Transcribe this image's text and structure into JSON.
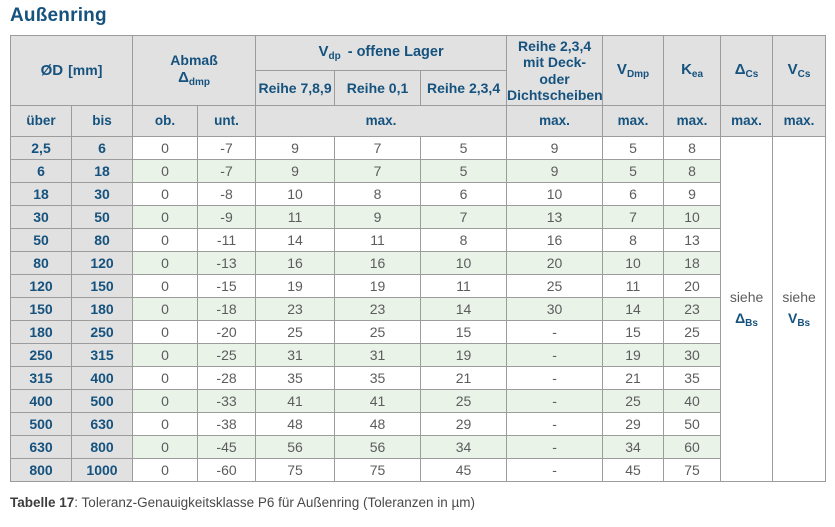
{
  "title": "Außenring",
  "table": {
    "header": {
      "od_label": "ØD",
      "od_unit": "[mm]",
      "abmass_label": "Abmaß",
      "abmass_sym": "Δ",
      "abmass_sub": "dmp",
      "vdp_sym": "V",
      "vdp_sub": "dp",
      "vdp_rest": "-  offene Lager",
      "reihe_789": "Reihe 7,8,9",
      "reihe_01": "Reihe 0,1",
      "reihe_234": "Reihe 2,3,4",
      "deck_line1": "Reihe 2,3,4",
      "deck_line2": "mit Deck- oder",
      "deck_line3": "Dichtscheiben",
      "vdmp_sym": "V",
      "vdmp_sub": "Dmp",
      "kea_sym": "K",
      "kea_sub": "ea",
      "dcs_sym": "Δ",
      "dcs_sub": "Cs",
      "vcs_sym": "V",
      "vcs_sub": "Cs",
      "ueber": "über",
      "bis": "bis",
      "ob": "ob.",
      "unt": "unt.",
      "max": "max."
    },
    "see_dbs": {
      "word": "siehe",
      "sym": "Δ",
      "sub": "Bs"
    },
    "see_vbs": {
      "word": "siehe",
      "sym": "V",
      "sub": "Bs"
    },
    "columns": [
      "über",
      "bis",
      "ob.",
      "unt.",
      "Reihe 7,8,9 max.",
      "Reihe 0,1 max.",
      "Reihe 2,3,4 max.",
      "Reihe 2,3,4 mit Deck- oder Dichtscheiben max.",
      "VDmp max.",
      "Kea max."
    ],
    "rows": [
      [
        "2,5",
        "6",
        "0",
        "-7",
        "9",
        "7",
        "5",
        "9",
        "5",
        "8"
      ],
      [
        "6",
        "18",
        "0",
        "-7",
        "9",
        "7",
        "5",
        "9",
        "5",
        "8"
      ],
      [
        "18",
        "30",
        "0",
        "-8",
        "10",
        "8",
        "6",
        "10",
        "6",
        "9"
      ],
      [
        "30",
        "50",
        "0",
        "-9",
        "11",
        "9",
        "7",
        "13",
        "7",
        "10"
      ],
      [
        "50",
        "80",
        "0",
        "-11",
        "14",
        "11",
        "8",
        "16",
        "8",
        "13"
      ],
      [
        "80",
        "120",
        "0",
        "-13",
        "16",
        "16",
        "10",
        "20",
        "10",
        "18"
      ],
      [
        "120",
        "150",
        "0",
        "-15",
        "19",
        "19",
        "11",
        "25",
        "11",
        "20"
      ],
      [
        "150",
        "180",
        "0",
        "-18",
        "23",
        "23",
        "14",
        "30",
        "14",
        "23"
      ],
      [
        "180",
        "250",
        "0",
        "-20",
        "25",
        "25",
        "15",
        "-",
        "15",
        "25"
      ],
      [
        "250",
        "315",
        "0",
        "-25",
        "31",
        "31",
        "19",
        "-",
        "19",
        "30"
      ],
      [
        "315",
        "400",
        "0",
        "-28",
        "35",
        "35",
        "21",
        "-",
        "21",
        "35"
      ],
      [
        "400",
        "500",
        "0",
        "-33",
        "41",
        "41",
        "25",
        "-",
        "25",
        "40"
      ],
      [
        "500",
        "630",
        "0",
        "-38",
        "48",
        "48",
        "29",
        "-",
        "29",
        "50"
      ],
      [
        "630",
        "800",
        "0",
        "-45",
        "56",
        "56",
        "34",
        "-",
        "34",
        "60"
      ],
      [
        "800",
        "1000",
        "0",
        "-60",
        "75",
        "75",
        "45",
        "-",
        "45",
        "75"
      ]
    ]
  },
  "caption": {
    "label": "Tabelle 17",
    "text": ": Toleranz-Genauigkeitsklasse P6 für Außenring (Toleranzen in µm)"
  },
  "colors": {
    "accent_blue": "#15527e",
    "header_gray": "#e1e1e1",
    "stripe_green": "#eaf3e8",
    "data_text": "#5c5c5e",
    "border": "#9c9c9c"
  }
}
